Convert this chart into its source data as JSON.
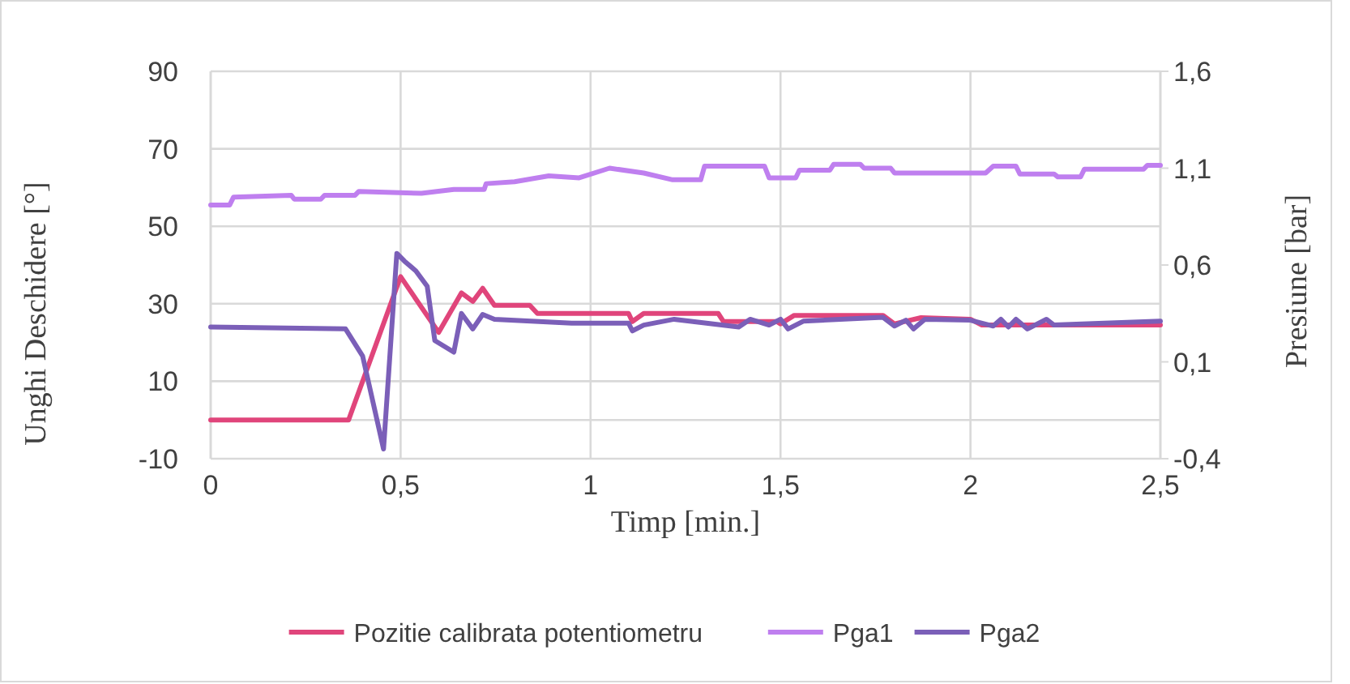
{
  "chart_data": {
    "type": "line",
    "xlabel": "Timp [min.]",
    "ylabel": "Unghi Deschidere [°]",
    "y2label": "Presiune [bar]",
    "xlim": [
      0,
      2.5
    ],
    "xticks": [
      0,
      {
        "value": 0.5,
        "label": "0,5"
      },
      1,
      {
        "value": 1.5,
        "label": "1,5"
      },
      2,
      {
        "value": 2.5,
        "label": "2,5"
      }
    ],
    "ylim": [
      -10,
      90
    ],
    "yticks": [
      -10,
      10,
      30,
      50,
      70,
      90
    ],
    "y2lim": [
      -0.4,
      1.6
    ],
    "y2ticks": [
      {
        "value": -0.4,
        "label": "-0,4"
      },
      {
        "value": 0.1,
        "label": "0,1"
      },
      {
        "value": 0.6,
        "label": "0,6"
      },
      {
        "value": 1.1,
        "label": "1,1"
      },
      {
        "value": 1.6,
        "label": "1,6"
      }
    ],
    "grid": true,
    "legend": "bottom",
    "marker": "none",
    "line_style": "solid",
    "series": [
      {
        "name": "Pozitie calibrata potentiometru",
        "color": "#e0457b",
        "x": [
          0,
          0.363,
          0.5,
          0.6,
          0.66,
          0.69,
          0.716,
          0.747,
          0.84,
          0.86,
          1.1,
          1.11,
          1.14,
          1.336,
          1.35,
          1.49,
          1.5,
          1.536,
          1.77,
          1.8,
          1.87,
          2.0,
          2.03,
          2.5
        ],
        "values": [
          0,
          0,
          37,
          22.6,
          32.8,
          30.6,
          34,
          29.6,
          29.6,
          27.5,
          27.5,
          25.4,
          27.5,
          27.5,
          25.4,
          25.4,
          24.8,
          27,
          27,
          24.8,
          26.4,
          26,
          24.5,
          24.5
        ]
      },
      {
        "name": "Pga1",
        "color": "#bf7fef",
        "axis": "y2",
        "x": [
          0,
          0.05,
          0.06,
          0.212,
          0.22,
          0.29,
          0.3,
          0.38,
          0.39,
          0.555,
          0.64,
          0.72,
          0.725,
          0.8,
          0.89,
          0.97,
          1.05,
          1.14,
          1.216,
          1.29,
          1.3,
          1.458,
          1.47,
          1.54,
          1.55,
          1.63,
          1.64,
          1.71,
          1.72,
          1.79,
          1.8,
          2.04,
          2.06,
          2.12,
          2.13,
          2.22,
          2.23,
          2.29,
          2.3,
          2.456,
          2.466,
          2.5
        ],
        "values": [
          0.91,
          0.91,
          0.95,
          0.96,
          0.94,
          0.94,
          0.96,
          0.96,
          0.98,
          0.97,
          0.99,
          0.99,
          1.02,
          1.03,
          1.06,
          1.05,
          1.1,
          1.075,
          1.04,
          1.04,
          1.11,
          1.11,
          1.05,
          1.05,
          1.09,
          1.09,
          1.12,
          1.12,
          1.1,
          1.1,
          1.075,
          1.075,
          1.11,
          1.11,
          1.07,
          1.07,
          1.055,
          1.055,
          1.095,
          1.095,
          1.115,
          1.115
        ]
      },
      {
        "name": "Pga2",
        "color": "#7b5fb8",
        "axis": "y2",
        "x": [
          0,
          0.355,
          0.4,
          0.455,
          0.49,
          0.51,
          0.54,
          0.57,
          0.59,
          0.64,
          0.66,
          0.69,
          0.716,
          0.747,
          0.95,
          1.1,
          1.11,
          1.14,
          1.22,
          1.39,
          1.42,
          1.47,
          1.5,
          1.52,
          1.56,
          1.77,
          1.8,
          1.83,
          1.85,
          1.88,
          2.0,
          2.06,
          2.08,
          2.1,
          2.12,
          2.15,
          2.2,
          2.22,
          2.5
        ],
        "values": [
          0.28,
          0.27,
          0.13,
          -0.35,
          0.66,
          0.62,
          0.57,
          0.49,
          0.21,
          0.15,
          0.35,
          0.27,
          0.345,
          0.32,
          0.3,
          0.3,
          0.26,
          0.29,
          0.32,
          0.28,
          0.32,
          0.29,
          0.32,
          0.27,
          0.31,
          0.33,
          0.285,
          0.315,
          0.27,
          0.32,
          0.315,
          0.285,
          0.32,
          0.28,
          0.32,
          0.27,
          0.32,
          0.29,
          0.31
        ]
      }
    ]
  }
}
